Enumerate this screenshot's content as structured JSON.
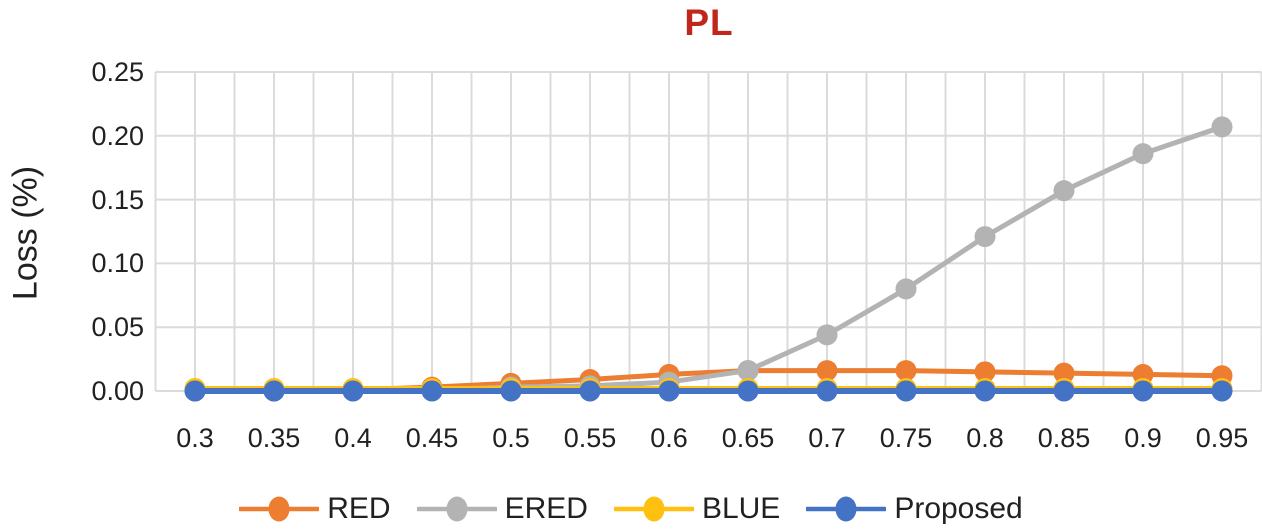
{
  "figure": {
    "title_color": "#C1261D",
    "text_color": "#212121",
    "background_color": "#ffffff"
  },
  "chart_data": {
    "type": "line",
    "title": "PL",
    "xlabel": "",
    "ylabel": "Loss (%)",
    "ylim": [
      0,
      0.25
    ],
    "grid": "both",
    "grid_color": "#DBDBDB",
    "legend_position": "bottom",
    "x_tick_labels": [
      "0.3",
      "0.35",
      "0.4",
      "0.45",
      "0.5",
      "0.55",
      "0.6",
      "0.65",
      "0.7",
      "0.75",
      "0.8",
      "0.85",
      "0.9",
      "0.95"
    ],
    "y_tick_labels": [
      "0.00",
      "0.05",
      "0.10",
      "0.15",
      "0.20",
      "0.25"
    ],
    "categories": [
      0.3,
      0.35,
      0.4,
      0.45,
      0.5,
      0.55,
      0.6,
      0.65,
      0.7,
      0.75,
      0.8,
      0.85,
      0.9,
      0.95
    ],
    "series": [
      {
        "name": "RED",
        "color": "#ED7D31",
        "values": [
          0.0,
          0.0,
          0.001,
          0.003,
          0.006,
          0.009,
          0.013,
          0.016,
          0.016,
          0.016,
          0.015,
          0.014,
          0.013,
          0.012
        ]
      },
      {
        "name": "ERED",
        "color": "#B3B3B3",
        "values": [
          0.0,
          0.0,
          0.0,
          0.001,
          0.003,
          0.004,
          0.007,
          0.016,
          0.044,
          0.08,
          0.121,
          0.157,
          0.186,
          0.207
        ]
      },
      {
        "name": "BLUE",
        "color": "#FFC010",
        "values": [
          0.002,
          0.002,
          0.002,
          0.002,
          0.002,
          0.002,
          0.002,
          0.002,
          0.002,
          0.002,
          0.002,
          0.002,
          0.002,
          0.002
        ]
      },
      {
        "name": "Proposed",
        "color": "#4472C4",
        "values": [
          0.0,
          0.0,
          0.0,
          0.0,
          0.0,
          0.0,
          0.0,
          0.0,
          0.0,
          0.0,
          0.0,
          0.0,
          0.0,
          0.0
        ]
      }
    ]
  }
}
